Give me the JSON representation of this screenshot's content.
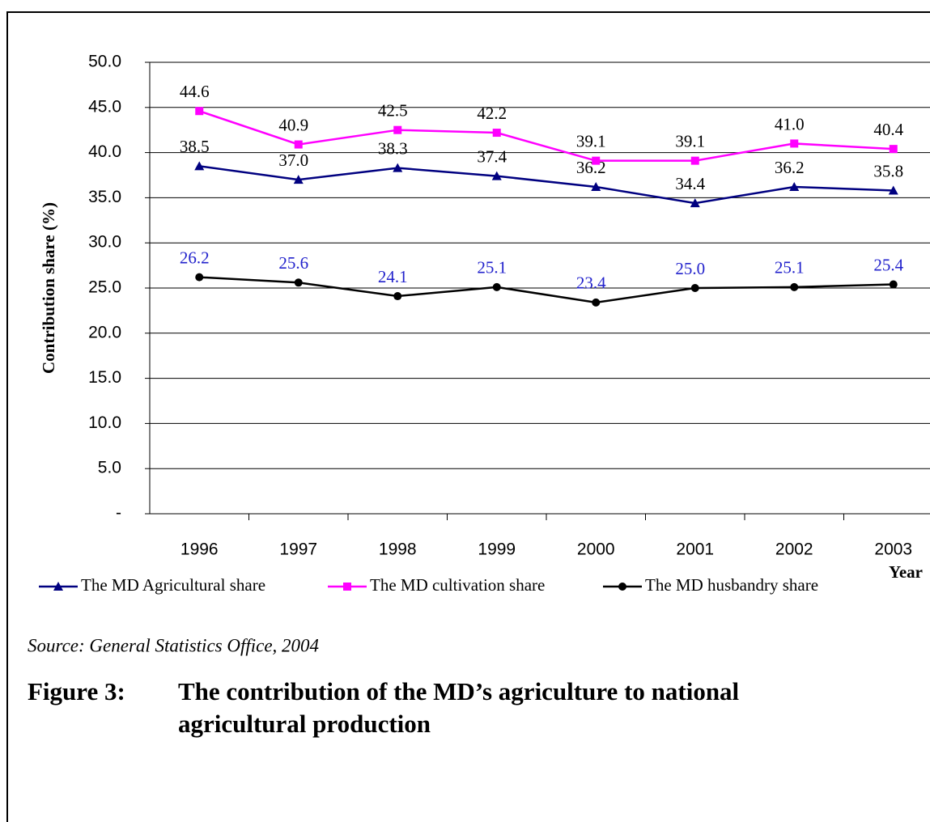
{
  "chart_data": {
    "type": "line",
    "y_label": "Contribution share (%)",
    "x_label": "Year",
    "categories": [
      "1996",
      "1997",
      "1998",
      "1999",
      "2000",
      "2001",
      "2002",
      "2003"
    ],
    "ylim": [
      0,
      50
    ],
    "yticks": [
      {
        "value": 0,
        "label": "-"
      },
      {
        "value": 5,
        "label": "5.0"
      },
      {
        "value": 10,
        "label": "10.0"
      },
      {
        "value": 15,
        "label": "15.0"
      },
      {
        "value": 20,
        "label": "20.0"
      },
      {
        "value": 25,
        "label": "25.0"
      },
      {
        "value": 30,
        "label": "30.0"
      },
      {
        "value": 35,
        "label": "35.0"
      },
      {
        "value": 40,
        "label": "40.0"
      },
      {
        "value": 45,
        "label": "45.0"
      },
      {
        "value": 50,
        "label": "50.0"
      }
    ],
    "grid": true,
    "series": [
      {
        "name": "The MD Agricultural share",
        "color": "#000080",
        "marker": "triangle",
        "label_color": "#000000",
        "values": [
          38.5,
          37.0,
          38.3,
          37.4,
          36.2,
          34.4,
          36.2,
          35.8
        ],
        "value_labels": [
          "38.5",
          "37.0",
          "38.3",
          "37.4",
          "36.2",
          "34.4",
          "36.2",
          "35.8"
        ]
      },
      {
        "name": "The MD cultivation share",
        "color": "#ff00ff",
        "marker": "square",
        "label_color": "#000000",
        "values": [
          44.6,
          40.9,
          42.5,
          42.2,
          39.1,
          39.1,
          41.0,
          40.4
        ],
        "value_labels": [
          "44.6",
          "40.9",
          "42.5",
          "42.2",
          "39.1",
          "39.1",
          "41.0",
          "40.4"
        ]
      },
      {
        "name": "The MD husbandry share",
        "color": "#000000",
        "marker": "circle",
        "label_color": "#2222cc",
        "values": [
          26.2,
          25.6,
          24.1,
          25.1,
          23.4,
          25.0,
          25.1,
          25.4
        ],
        "value_labels": [
          "26.2",
          "25.6",
          "24.1",
          "25.1",
          "23.4",
          "25.0",
          "25.1",
          "25.4"
        ]
      }
    ]
  },
  "source": "Source: General Statistics Office, 2004",
  "caption": {
    "label": "Figure 3:",
    "lines": [
      "The contribution of the MD’s agriculture to national",
      "agricultural production"
    ]
  }
}
